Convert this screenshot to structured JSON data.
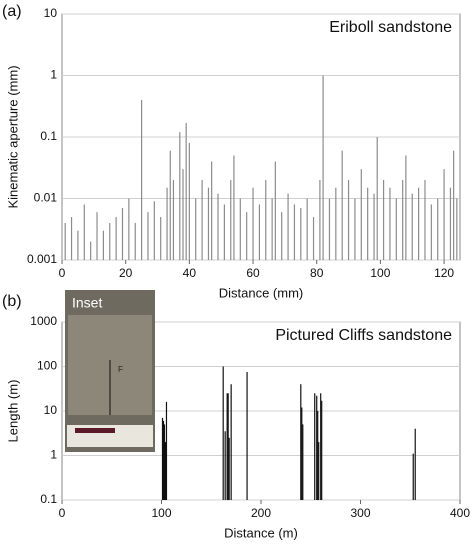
{
  "chart_data": [
    {
      "type": "spike",
      "panel_label": "(a)",
      "title": "Eriboll sandstone",
      "x_label": "Distance (mm)",
      "y_label": "Kinematic aperture (mm)",
      "log_y": true,
      "grid": true,
      "color": "#8c8c8c",
      "xlim": [
        0,
        125
      ],
      "xticks": [
        0,
        20,
        40,
        60,
        80,
        100,
        120
      ],
      "ylim": [
        0.001,
        10
      ],
      "yticks": [
        0.001,
        0.01,
        0.1,
        1,
        10
      ],
      "x": [
        1,
        3,
        5,
        7,
        9,
        11,
        13,
        15,
        17,
        19,
        21,
        23,
        25,
        27,
        29,
        31,
        33,
        34,
        35,
        37,
        38,
        39,
        40,
        42,
        44,
        46,
        47,
        49,
        51,
        53,
        54,
        56,
        58,
        60,
        62,
        64,
        66,
        67,
        69,
        71,
        73,
        75,
        77,
        79,
        81,
        82,
        84,
        86,
        88,
        90,
        92,
        94,
        96,
        98,
        99,
        101,
        103,
        105,
        107,
        108,
        110,
        112,
        114,
        116,
        118,
        120,
        122,
        123,
        124
      ],
      "values": [
        0.004,
        0.005,
        0.003,
        0.008,
        0.002,
        0.006,
        0.003,
        0.004,
        0.005,
        0.007,
        0.01,
        0.004,
        0.4,
        0.006,
        0.009,
        0.005,
        0.015,
        0.06,
        0.02,
        0.12,
        0.03,
        0.17,
        0.08,
        0.01,
        0.02,
        0.015,
        0.04,
        0.012,
        0.008,
        0.02,
        0.05,
        0.01,
        0.006,
        0.015,
        0.008,
        0.02,
        0.01,
        0.04,
        0.006,
        0.012,
        0.008,
        0.007,
        0.01,
        0.005,
        0.02,
        1,
        0.01,
        0.015,
        0.06,
        0.02,
        0.01,
        0.03,
        0.015,
        0.012,
        0.1,
        0.02,
        0.015,
        0.01,
        0.02,
        0.05,
        0.012,
        0.015,
        0.02,
        0.008,
        0.01,
        0.03,
        0.015,
        0.06,
        0.01
      ]
    },
    {
      "type": "spike",
      "panel_label": "(b)",
      "title": "Pictured Cliffs sandstone",
      "x_label": "Distance (m)",
      "y_label": "Length (m)",
      "log_y": true,
      "grid": true,
      "color": "#111111",
      "xlim": [
        0,
        400
      ],
      "xticks": [
        0,
        100,
        200,
        300,
        400
      ],
      "ylim": [
        0.1,
        1000
      ],
      "yticks": [
        0.1,
        1,
        10,
        100,
        1000
      ],
      "x": [
        101,
        102,
        103,
        104,
        105,
        162,
        164,
        166,
        167,
        168,
        170,
        186,
        240,
        241,
        242,
        254,
        256,
        257,
        258,
        260,
        261,
        353,
        355
      ],
      "values": [
        7,
        6,
        5,
        2,
        16,
        100,
        3.5,
        25,
        25,
        2.5,
        40,
        75,
        40,
        12,
        5,
        25,
        22,
        10,
        2,
        25,
        17,
        1.1,
        4
      ]
    }
  ],
  "inset": {
    "label": "Inset",
    "marker": "F"
  }
}
